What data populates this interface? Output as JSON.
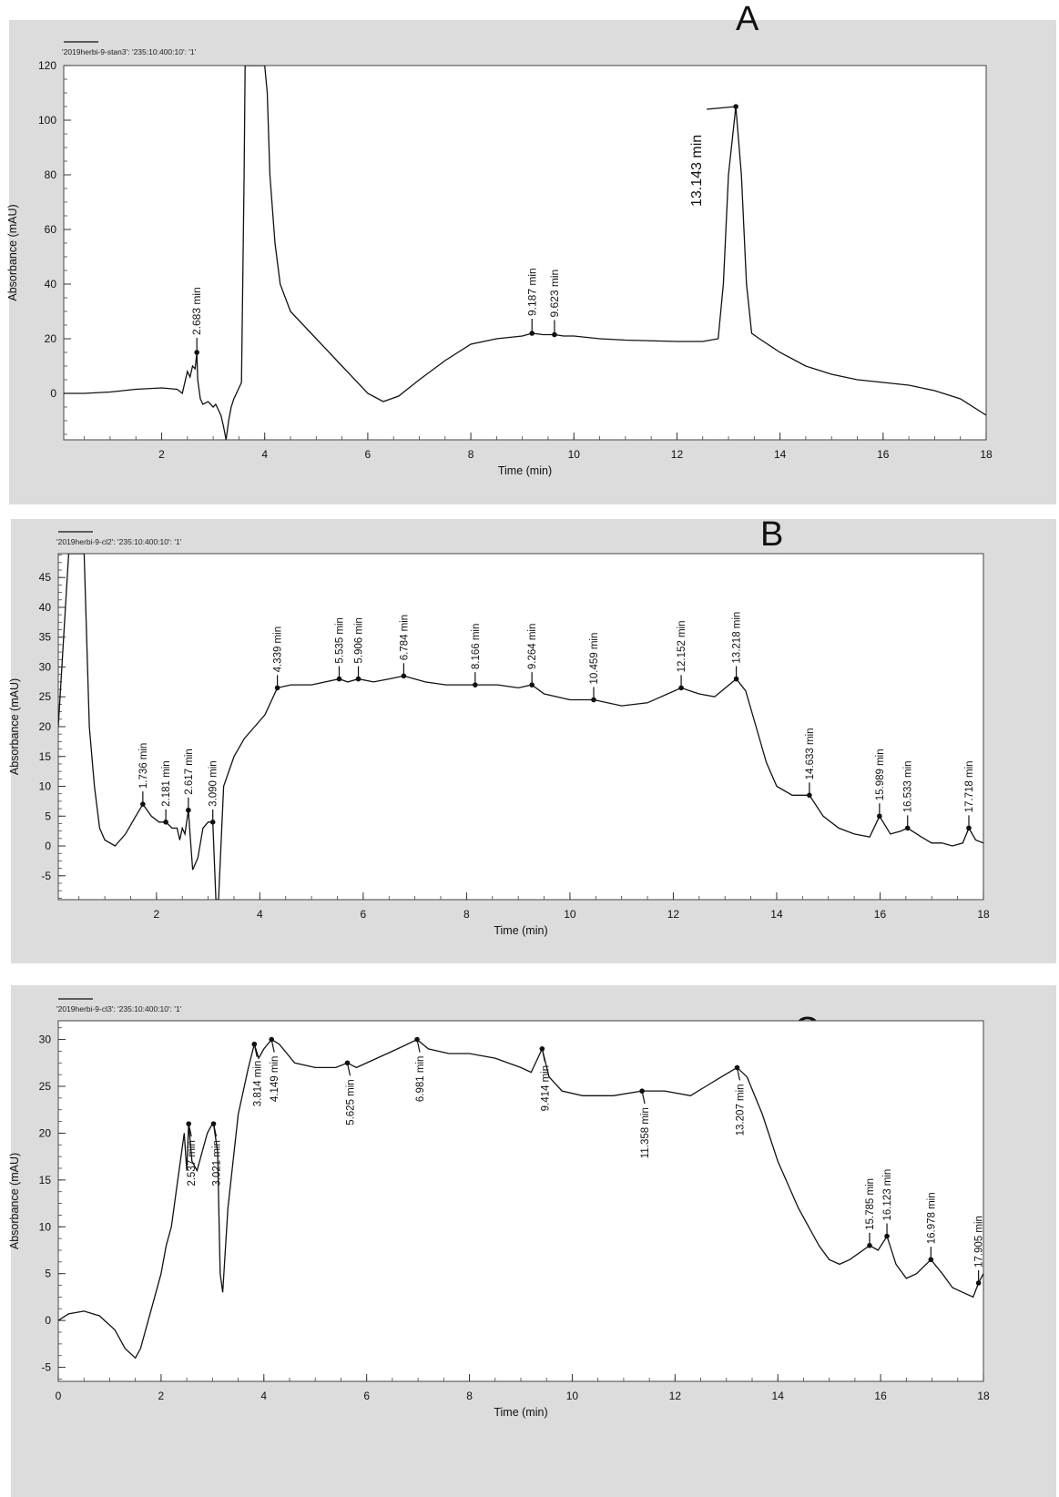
{
  "panels": [
    {
      "letter": "A"
    },
    {
      "letter": "B"
    },
    {
      "letter": "C"
    }
  ],
  "chart_data": [
    {
      "type": "line",
      "panel_label": "A",
      "trace_name": "'2019herbi-9-stan3': '235:10:400:10': '1'",
      "xlabel": "Time (min)",
      "ylabel": "Absorbance (mAU)",
      "xlim": [
        0.1,
        18
      ],
      "ylim": [
        -17,
        120
      ],
      "xticks": [
        2,
        4,
        6,
        8,
        10,
        12,
        14,
        16,
        18
      ],
      "yticks": [
        0,
        20,
        40,
        60,
        80,
        100,
        120
      ],
      "x": [
        0.1,
        0.5,
        1.0,
        1.5,
        2.0,
        2.3,
        2.4,
        2.5,
        2.55,
        2.6,
        2.65,
        2.683,
        2.7,
        2.75,
        2.8,
        2.9,
        3.0,
        3.05,
        3.1,
        3.15,
        3.2,
        3.25,
        3.3,
        3.35,
        3.4,
        3.45,
        3.5,
        3.55,
        3.6,
        3.62,
        3.64,
        3.7,
        3.9,
        4.0,
        4.05,
        4.1,
        4.2,
        4.3,
        4.5,
        5.0,
        5.5,
        6.0,
        6.3,
        6.6,
        7.0,
        7.5,
        8.0,
        8.5,
        9.0,
        9.187,
        9.4,
        9.623,
        9.8,
        10.0,
        10.5,
        11.0,
        12.0,
        12.5,
        12.8,
        12.9,
        13.0,
        13.143,
        13.25,
        13.35,
        13.45,
        13.6,
        14.0,
        14.5,
        15.0,
        15.5,
        16.0,
        16.5,
        17.0,
        17.5,
        18.0
      ],
      "values": [
        0,
        0,
        0.5,
        1.5,
        2,
        1.5,
        0,
        8,
        6,
        10,
        9,
        15,
        5,
        -2,
        -4,
        -3,
        -5,
        -4,
        -6,
        -8,
        -12,
        -17,
        -10,
        -5,
        -2,
        0,
        2,
        4,
        80,
        120,
        120,
        120,
        120,
        120,
        110,
        80,
        55,
        40,
        30,
        20,
        10,
        0,
        -3,
        -1,
        5,
        12,
        18,
        20,
        21,
        22,
        21.5,
        21.5,
        21,
        21,
        20,
        19.5,
        19,
        19,
        20,
        40,
        80,
        105,
        80,
        40,
        22,
        20,
        15,
        10,
        7,
        5,
        4,
        3,
        1,
        -2,
        -8
      ],
      "annotations": [
        {
          "label": "2.683 min",
          "x": 2.683,
          "y": 15
        },
        {
          "label": "9.187 min",
          "x": 9.187,
          "y": 22
        },
        {
          "label": "9.623 min",
          "x": 9.623,
          "y": 21.5
        },
        {
          "label": "13.143 min",
          "x": 13.143,
          "y": 105
        }
      ]
    },
    {
      "type": "line",
      "panel_label": "B",
      "trace_name": "'2019herbi-9-cl2': '235:10:400:10': '1'",
      "xlabel": "Time (min)",
      "ylabel": "Absorbance (mAU)",
      "xlim": [
        0.1,
        18
      ],
      "ylim": [
        -9,
        49
      ],
      "xticks": [
        2,
        4,
        6,
        8,
        10,
        12,
        14,
        16,
        18
      ],
      "yticks": [
        -5,
        0,
        5,
        10,
        15,
        20,
        25,
        30,
        35,
        40,
        45
      ],
      "x": [
        0.1,
        0.3,
        0.45,
        0.5,
        0.6,
        0.7,
        0.8,
        0.9,
        1.0,
        1.2,
        1.4,
        1.6,
        1.736,
        1.9,
        2.05,
        2.181,
        2.3,
        2.4,
        2.45,
        2.5,
        2.55,
        2.6,
        2.617,
        2.65,
        2.7,
        2.8,
        2.9,
        3.0,
        3.09,
        3.15,
        3.2,
        3.3,
        3.5,
        3.7,
        3.9,
        4.1,
        4.339,
        4.6,
        5.0,
        5.535,
        5.7,
        5.906,
        6.2,
        6.5,
        6.784,
        7.2,
        7.6,
        8.166,
        8.6,
        9.0,
        9.264,
        9.5,
        10.0,
        10.459,
        11.0,
        11.5,
        12.152,
        12.5,
        12.8,
        13.218,
        13.4,
        13.6,
        13.8,
        14.0,
        14.3,
        14.633,
        14.9,
        15.2,
        15.5,
        15.8,
        15.989,
        16.2,
        16.4,
        16.533,
        16.8,
        17.0,
        17.2,
        17.4,
        17.6,
        17.718,
        17.85,
        18.0
      ],
      "values": [
        20,
        49,
        49,
        49,
        49,
        20,
        10,
        3,
        1,
        0,
        2,
        5,
        7,
        5,
        4,
        4,
        3,
        3,
        1,
        3,
        2,
        5,
        6,
        2,
        -4,
        -2,
        3,
        4,
        4,
        -9,
        -9,
        10,
        15,
        18,
        20,
        22,
        26.5,
        27,
        27,
        28,
        27.5,
        28,
        27.5,
        28,
        28.5,
        27.5,
        27,
        27,
        27,
        26.5,
        27,
        25.5,
        24.5,
        24.5,
        23.5,
        24,
        26.5,
        25.5,
        25,
        28,
        26,
        20,
        14,
        10,
        8.5,
        8.5,
        5,
        3,
        2,
        1.5,
        5,
        2,
        2.5,
        3,
        1.5,
        0.5,
        0.5,
        0,
        0.5,
        3,
        1,
        0.5
      ],
      "annotations": [
        {
          "label": "1.736 min",
          "x": 1.736,
          "y": 7
        },
        {
          "label": "2.181 min",
          "x": 2.181,
          "y": 4
        },
        {
          "label": "2.617 min",
          "x": 2.617,
          "y": 6
        },
        {
          "label": "3.090 min",
          "x": 3.09,
          "y": 4
        },
        {
          "label": "4.339 min",
          "x": 4.339,
          "y": 26.5
        },
        {
          "label": "5.535 min",
          "x": 5.535,
          "y": 28
        },
        {
          "label": "5.906 min",
          "x": 5.906,
          "y": 28
        },
        {
          "label": "6.784 min",
          "x": 6.784,
          "y": 28.5
        },
        {
          "label": "8.166 min",
          "x": 8.166,
          "y": 27
        },
        {
          "label": "9.264 min",
          "x": 9.264,
          "y": 27
        },
        {
          "label": "10.459 min",
          "x": 10.459,
          "y": 24.5
        },
        {
          "label": "12.152 min",
          "x": 12.152,
          "y": 26.5
        },
        {
          "label": "13.218 min",
          "x": 13.218,
          "y": 28
        },
        {
          "label": "14.633 min",
          "x": 14.633,
          "y": 8.5
        },
        {
          "label": "15.989 min",
          "x": 15.989,
          "y": 5
        },
        {
          "label": "16.533 min",
          "x": 16.533,
          "y": 3
        },
        {
          "label": "17.718 min",
          "x": 17.718,
          "y": 3
        }
      ]
    },
    {
      "type": "line",
      "panel_label": "C",
      "trace_name": "'2019herbi-9-cl3': '235:10:400:10': '1'",
      "xlabel": "Time (min)",
      "ylabel": "Absorbance (mAU)",
      "xlim": [
        0,
        18
      ],
      "ylim": [
        -6.5,
        32
      ],
      "xticks": [
        0,
        2,
        4,
        6,
        8,
        10,
        12,
        14,
        16,
        18
      ],
      "yticks": [
        -5,
        0,
        5,
        10,
        15,
        20,
        25,
        30
      ],
      "x": [
        0,
        0.2,
        0.5,
        0.8,
        1.1,
        1.3,
        1.5,
        1.6,
        1.8,
        2.0,
        2.1,
        2.2,
        2.3,
        2.4,
        2.45,
        2.5,
        2.537,
        2.6,
        2.7,
        2.8,
        2.9,
        3.0,
        3.021,
        3.1,
        3.15,
        3.2,
        3.3,
        3.5,
        3.7,
        3.814,
        3.9,
        4.0,
        4.149,
        4.3,
        4.6,
        5.0,
        5.4,
        5.625,
        5.8,
        6.2,
        6.6,
        6.981,
        7.2,
        7.6,
        8.0,
        8.5,
        9.0,
        9.2,
        9.414,
        9.55,
        9.8,
        10.2,
        10.8,
        11.358,
        11.8,
        12.3,
        12.6,
        12.9,
        13.207,
        13.4,
        13.7,
        14.0,
        14.4,
        14.8,
        15.0,
        15.2,
        15.4,
        15.785,
        15.95,
        16.123,
        16.3,
        16.5,
        16.7,
        16.978,
        17.2,
        17.4,
        17.6,
        17.8,
        17.905,
        18.0
      ],
      "values": [
        0,
        0.7,
        1,
        0.5,
        -1,
        -3,
        -4,
        -3,
        1,
        5,
        8,
        10,
        14,
        18,
        20,
        16,
        21,
        17,
        16,
        18,
        20,
        21,
        21,
        18,
        5,
        3,
        12,
        22,
        27,
        29.5,
        28,
        29,
        30,
        29.5,
        27.5,
        27,
        27,
        27.5,
        27,
        28,
        29,
        30,
        29,
        28.5,
        28.5,
        28,
        27,
        26.5,
        29,
        26,
        24.5,
        24,
        24,
        24.5,
        24.5,
        24,
        25,
        26,
        27,
        26,
        22,
        17,
        12,
        8,
        6.5,
        6,
        6.5,
        8,
        7.5,
        9,
        6,
        4.5,
        5,
        6.5,
        5,
        3.5,
        3,
        2.5,
        4,
        5
      ],
      "annotations": [
        {
          "label": "2.537 min",
          "x": 2.537,
          "y": 21
        },
        {
          "label": "3.021 min",
          "x": 3.021,
          "y": 21
        },
        {
          "label": "3.814 min",
          "x": 3.814,
          "y": 29.5
        },
        {
          "label": "4.149 min",
          "x": 4.149,
          "y": 30
        },
        {
          "label": "5.625 min",
          "x": 5.625,
          "y": 27.5
        },
        {
          "label": "6.981 min",
          "x": 6.981,
          "y": 30
        },
        {
          "label": "9.414 min",
          "x": 9.414,
          "y": 29
        },
        {
          "label": "11.358 min",
          "x": 11.358,
          "y": 24.5
        },
        {
          "label": "13.207 min",
          "x": 13.207,
          "y": 27
        },
        {
          "label": "15.785 min",
          "x": 15.785,
          "y": 8
        },
        {
          "label": "16.123 min",
          "x": 16.123,
          "y": 9
        },
        {
          "label": "16.978 min",
          "x": 16.978,
          "y": 6.5
        },
        {
          "label": "17.905 min",
          "x": 17.905,
          "y": 4
        }
      ]
    }
  ]
}
